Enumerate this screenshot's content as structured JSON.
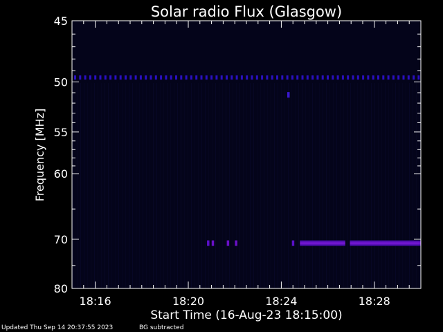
{
  "chart_data": {
    "type": "heatmap",
    "title": "Solar radio Flux (Glasgow)",
    "xlabel": "Start Time (16-Aug-23 18:15:00)",
    "ylabel": "Frequency [MHz]",
    "x_start_minutes": 0,
    "x_end_minutes": 15,
    "x_tick_labels": [
      "18:16",
      "18:20",
      "18:24",
      "18:28"
    ],
    "x_tick_positions_minutes": [
      1,
      5,
      9,
      13
    ],
    "y_tick_labels": [
      "45",
      "50",
      "55",
      "60",
      "70",
      "80"
    ],
    "y_tick_values": [
      45,
      50,
      55,
      60,
      70,
      80
    ],
    "ylim": [
      45,
      80
    ],
    "y_axis_scale": "reciprocal",
    "y_inverted": true,
    "grid": false,
    "background_color": "#04041a",
    "emission_features": [
      {
        "frequency_mhz": 49.6,
        "type": "dotted-band",
        "from_min": 0,
        "to_min": 15,
        "color": "#2a10c0"
      },
      {
        "frequency_mhz": 51.2,
        "type": "spot",
        "at_min": 9.3,
        "color": "#3a18d0"
      },
      {
        "frequency_mhz": 70.7,
        "type": "spot",
        "at_min": 5.85,
        "color": "#5a10c8"
      },
      {
        "frequency_mhz": 70.7,
        "type": "spot",
        "at_min": 6.05,
        "color": "#6a10c8"
      },
      {
        "frequency_mhz": 70.7,
        "type": "spot",
        "at_min": 6.7,
        "color": "#6a10c8"
      },
      {
        "frequency_mhz": 70.7,
        "type": "spot",
        "at_min": 7.05,
        "color": "#6a10c8"
      },
      {
        "frequency_mhz": 70.7,
        "type": "spot",
        "at_min": 9.5,
        "color": "#5a10c8"
      },
      {
        "frequency_mhz": 70.7,
        "type": "band",
        "from_min": 9.8,
        "to_min": 11.75,
        "color": "#5a10b8"
      },
      {
        "frequency_mhz": 70.7,
        "type": "band",
        "from_min": 11.95,
        "to_min": 15,
        "color": "#5a10b8"
      }
    ]
  },
  "footer": {
    "updated": "Updated Thu Sep 14 20:37:55 2023",
    "bg_note": "BG subtracted"
  },
  "colors": {
    "axis": "#ffffff",
    "text": "#ffffff",
    "page_background": "#000000"
  }
}
